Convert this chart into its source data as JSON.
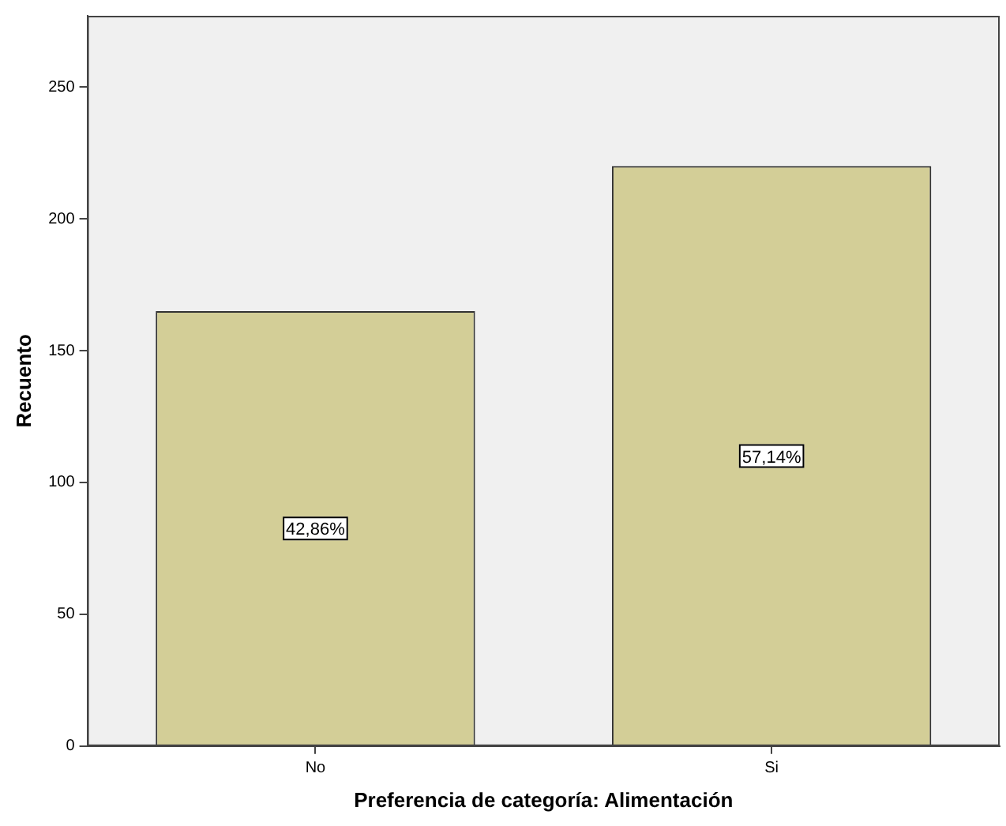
{
  "chart_data": {
    "type": "bar",
    "xlabel": "Preferencia de categoría: Alimentación",
    "ylabel": "Recuento",
    "categories": [
      "No",
      "Si"
    ],
    "values": [
      165,
      220
    ],
    "annotations": [
      {
        "text": "42,86%",
        "x": "No",
        "y": 82.5
      },
      {
        "text": "57,14%",
        "x": "Si",
        "y": 110
      }
    ],
    "color": "#d3ce97",
    "ylim": [
      0,
      277
    ],
    "yticks": [
      0,
      50,
      100,
      150,
      200,
      250
    ],
    "grid": false,
    "legend": false
  }
}
